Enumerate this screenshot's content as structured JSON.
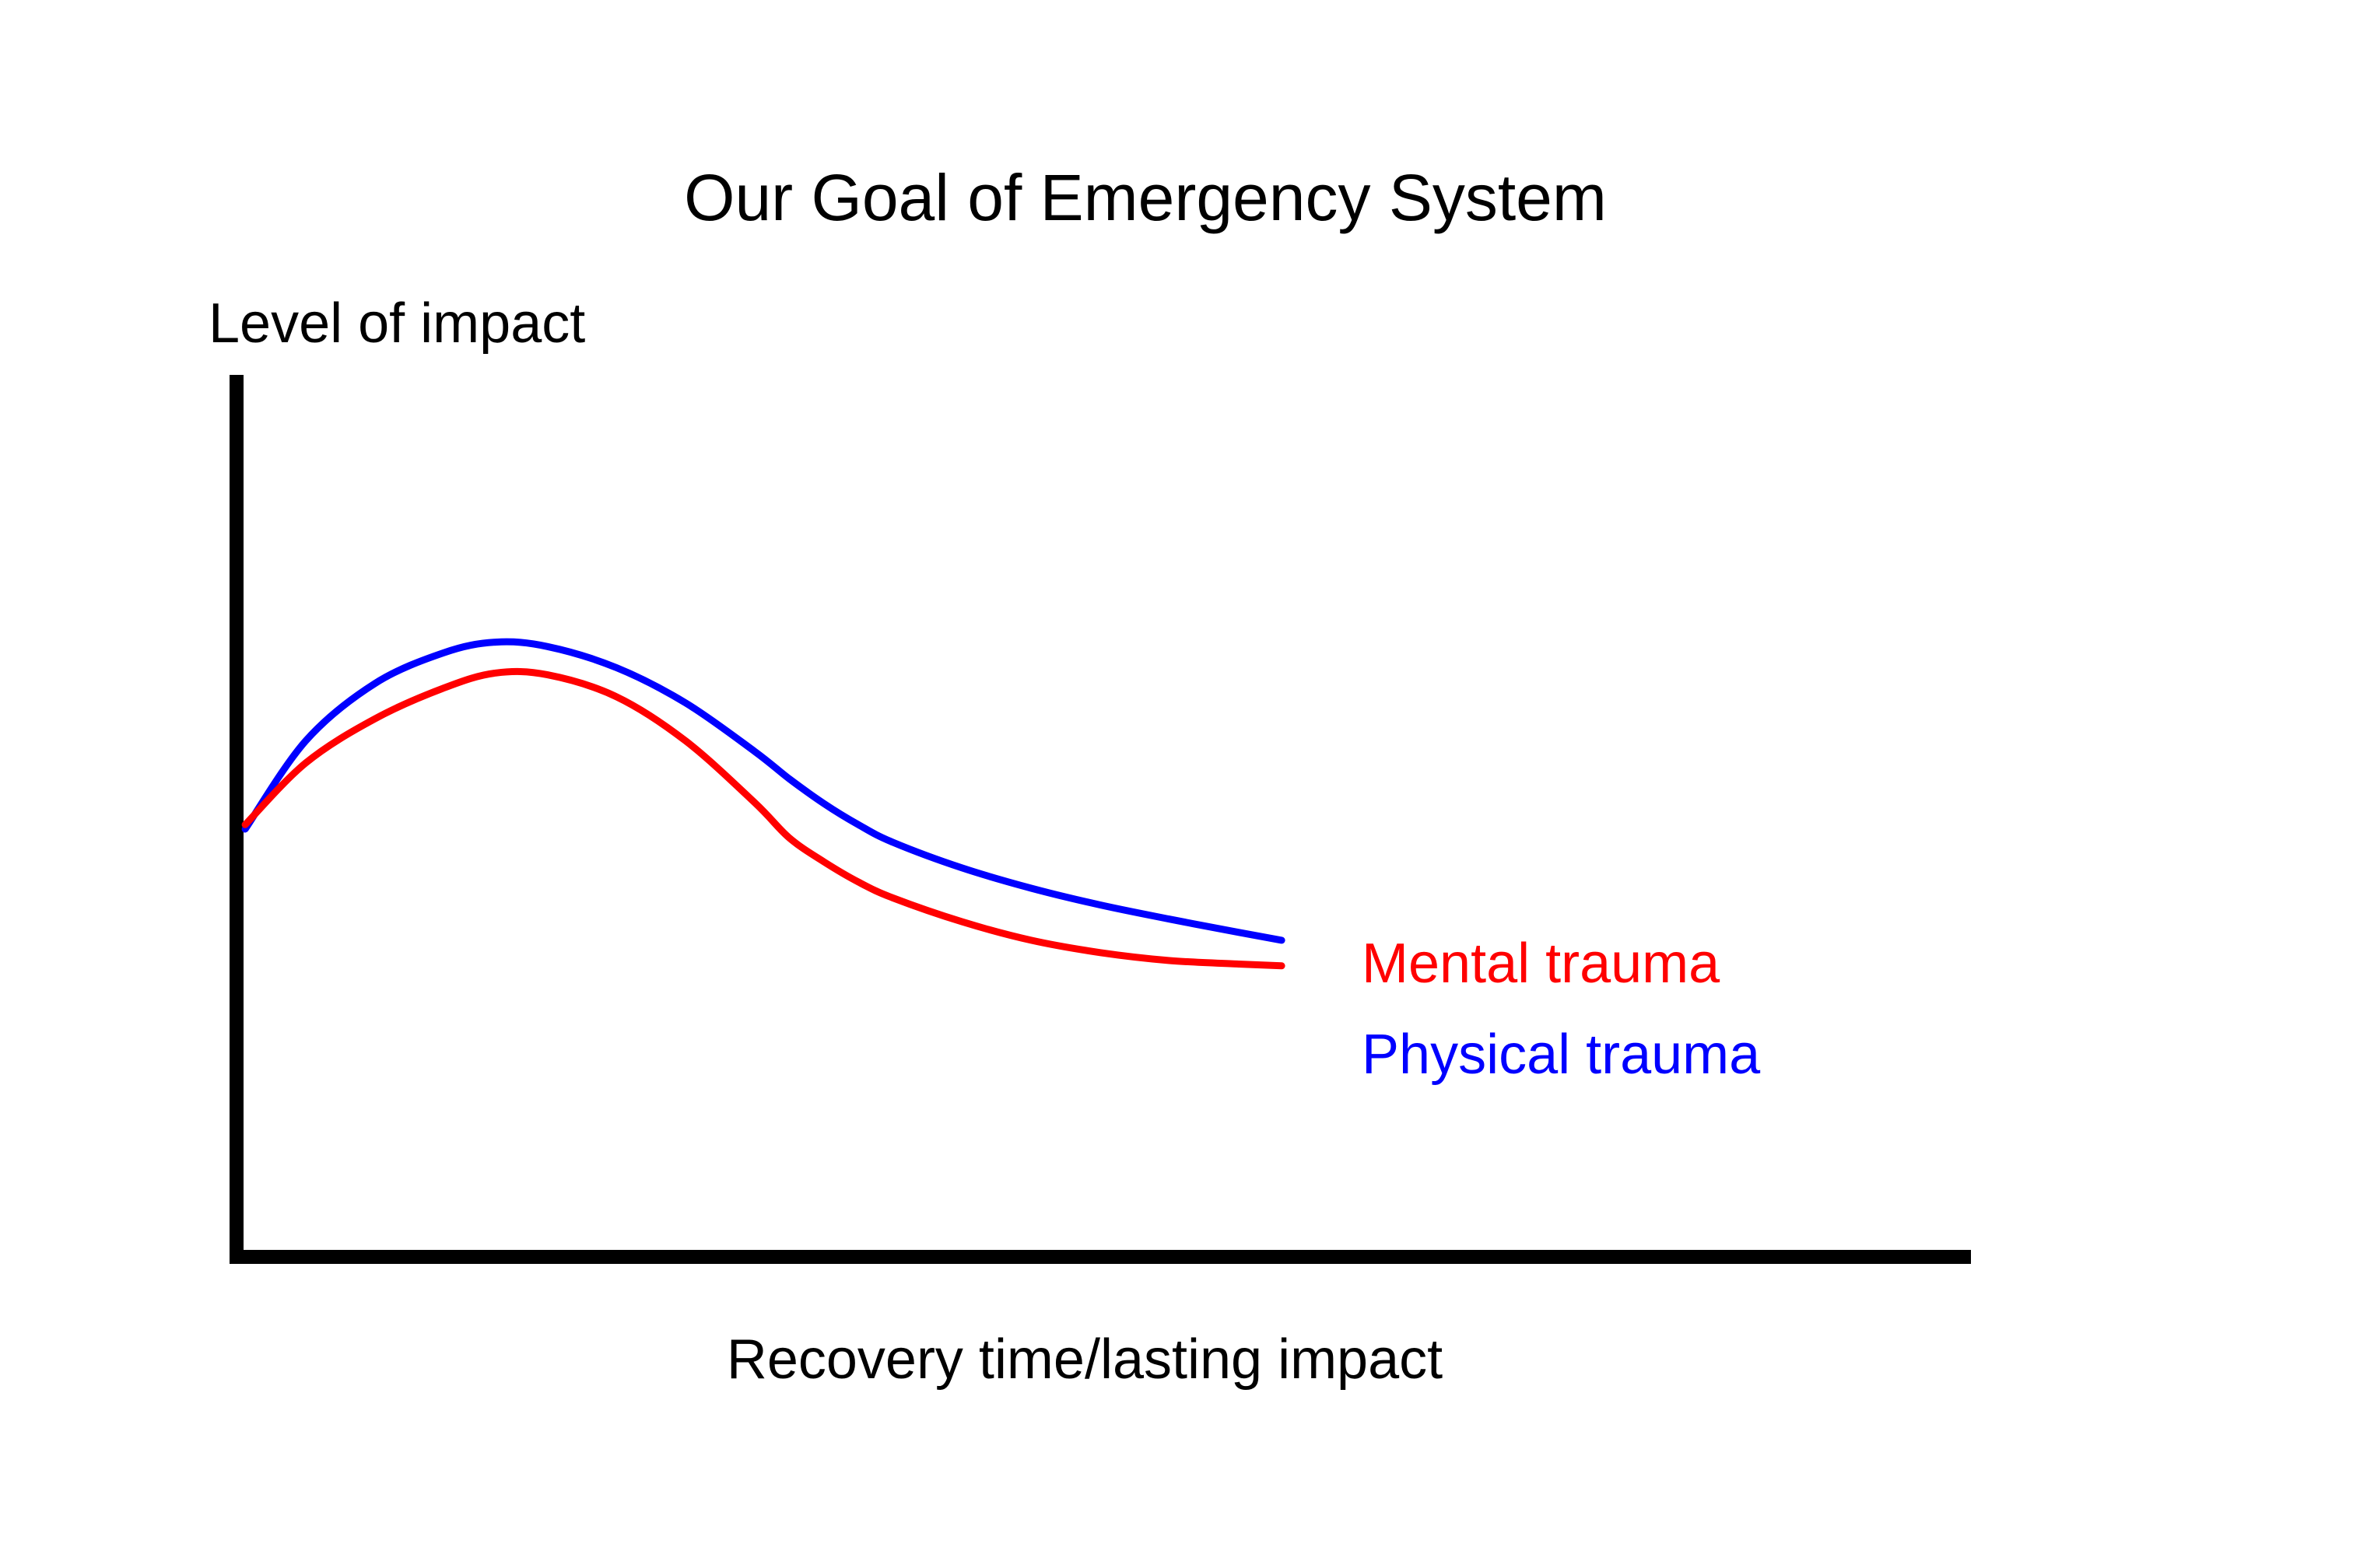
{
  "chart_data": {
    "type": "line",
    "title": "Our Goal of Emergency System",
    "xlabel": "Recovery time/lasting impact",
    "ylabel": "Level of impact",
    "xlim": [
      0,
      100
    ],
    "ylim": [
      0,
      100
    ],
    "grid": false,
    "legend_position": "right",
    "series": [
      {
        "name": "Mental trauma",
        "color": "#ff0000",
        "x": [
          0.5,
          4,
          8,
          12,
          15,
          18,
          22,
          26,
          30,
          32,
          34,
          36,
          38,
          42,
          46,
          50,
          54,
          58,
          60.5
        ],
        "y": [
          49,
          56,
          61,
          64.5,
          66.2,
          66,
          63.5,
          58.5,
          51.5,
          47.5,
          44.8,
          42.5,
          40.7,
          38,
          35.9,
          34.5,
          33.6,
          33.2,
          33
        ]
      },
      {
        "name": "Physical trauma",
        "color": "#0000ff",
        "x": [
          0.5,
          4,
          8,
          12,
          15,
          18,
          22,
          26,
          30,
          32,
          34,
          36,
          38,
          42,
          46,
          50,
          54,
          58,
          60.5
        ],
        "y": [
          48.5,
          58.5,
          65,
          68.5,
          69.7,
          69.2,
          66.8,
          62.8,
          57.3,
          54.2,
          51.4,
          49,
          47,
          44.1,
          41.8,
          39.9,
          38.3,
          36.8,
          35.9
        ]
      }
    ]
  }
}
